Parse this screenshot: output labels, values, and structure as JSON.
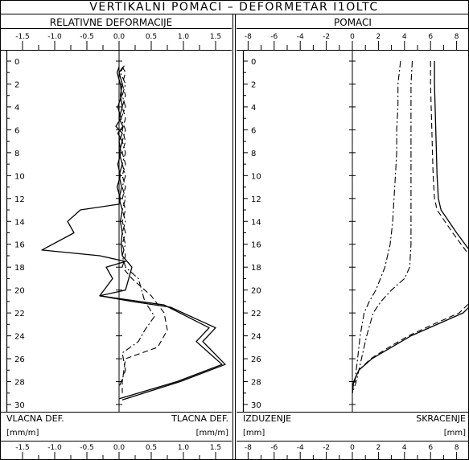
{
  "title": "VERTIKALNI  POMACI  –  DEFORMETAR  I1OLTC",
  "chart_data": [
    {
      "type": "line",
      "title": "RELATIVNE DEFORMACIJE",
      "xlim": [
        -1.5,
        1.75
      ],
      "ylim": [
        0,
        30
      ],
      "x_ticks": [
        -1.5,
        -1.0,
        -0.5,
        0.0,
        0.5,
        1.0,
        1.5
      ],
      "x_tick_labels": [
        "-1.5",
        "-1.0",
        "-0.5",
        "0.0",
        "0.5",
        "1.0",
        "1.5"
      ],
      "y_ticks": [
        0,
        2,
        4,
        6,
        8,
        10,
        12,
        14,
        16,
        18,
        20,
        22,
        24,
        26,
        28,
        30
      ],
      "y_tick_labels": [
        "0",
        "2",
        "4",
        "6",
        "8",
        "10",
        "12",
        "14",
        "16",
        "18",
        "20",
        "22",
        "24",
        "26",
        "28",
        "30"
      ],
      "left_label": "VLACNA DEF.",
      "right_label": "TLACNA DEF.",
      "left_unit": "[mm/m]",
      "right_unit": "[mm/m]",
      "series": [
        {
          "style": "solid",
          "points": [
            [
              0,
              0.5
            ],
            [
              -0.03,
              1
            ],
            [
              0.02,
              2
            ],
            [
              0.04,
              3
            ],
            [
              -0.02,
              4
            ],
            [
              0.03,
              5
            ],
            [
              -0.05,
              5.7
            ],
            [
              0.05,
              6.3
            ],
            [
              0,
              7
            ],
            [
              0.03,
              8
            ],
            [
              -0.02,
              9
            ],
            [
              0.02,
              10
            ],
            [
              -0.03,
              11
            ],
            [
              0.02,
              12
            ],
            [
              0,
              12.5
            ],
            [
              -0.6,
              13
            ],
            [
              -0.8,
              14
            ],
            [
              -0.7,
              15
            ],
            [
              -1.2,
              16.5
            ],
            [
              -0.3,
              17
            ],
            [
              0.1,
              17.5
            ],
            [
              -0.2,
              18
            ],
            [
              -0.1,
              19
            ],
            [
              -0.3,
              20.5
            ],
            [
              0.2,
              20.9
            ],
            [
              0.7,
              21.3
            ],
            [
              1.4,
              23.3
            ],
            [
              1.2,
              24.5
            ],
            [
              1.6,
              26.5
            ],
            [
              0.9,
              28
            ],
            [
              0,
              29.5
            ]
          ]
        },
        {
          "style": "solid",
          "points": [
            [
              0.05,
              0.6
            ],
            [
              0,
              1
            ],
            [
              0.05,
              2
            ],
            [
              0.02,
              3
            ],
            [
              0.05,
              4
            ],
            [
              0,
              5
            ],
            [
              0.06,
              5.7
            ],
            [
              -0.02,
              6.3
            ],
            [
              0.05,
              7
            ],
            [
              0,
              8
            ],
            [
              0.05,
              9
            ],
            [
              0,
              10
            ],
            [
              0.04,
              11
            ],
            [
              0,
              12
            ],
            [
              0.05,
              13
            ],
            [
              0.02,
              14
            ],
            [
              0.05,
              15
            ],
            [
              0.03,
              16
            ],
            [
              0.05,
              17
            ],
            [
              0.2,
              18
            ],
            [
              0.15,
              19
            ],
            [
              0.1,
              20
            ],
            [
              -0.3,
              20.5
            ],
            [
              0.2,
              21
            ],
            [
              0.8,
              21.5
            ],
            [
              1.5,
              23.3
            ],
            [
              1.3,
              24.5
            ],
            [
              1.65,
              26.5
            ],
            [
              0.95,
              28
            ],
            [
              0.05,
              29.6
            ]
          ]
        },
        {
          "style": "dashed",
          "points": [
            [
              0.05,
              0.5
            ],
            [
              0.1,
              1
            ],
            [
              0.05,
              2
            ],
            [
              0.1,
              3
            ],
            [
              0.05,
              4
            ],
            [
              0.1,
              5
            ],
            [
              0.05,
              6
            ],
            [
              0.1,
              7
            ],
            [
              0.05,
              8
            ],
            [
              0.1,
              9
            ],
            [
              0.05,
              10
            ],
            [
              0.1,
              11
            ],
            [
              0.05,
              12
            ],
            [
              0.1,
              13
            ],
            [
              0.05,
              14
            ],
            [
              0.1,
              15
            ],
            [
              0.05,
              16
            ],
            [
              0.1,
              17
            ],
            [
              0.05,
              18
            ],
            [
              0.2,
              19
            ],
            [
              0.5,
              20.5
            ],
            [
              0.7,
              22
            ],
            [
              0.75,
              23.5
            ],
            [
              0.6,
              25
            ],
            [
              0.1,
              26
            ],
            [
              0.05,
              28
            ],
            [
              0.05,
              29
            ]
          ]
        },
        {
          "style": "dashdot",
          "points": [
            [
              0.08,
              0.4
            ],
            [
              0.02,
              1
            ],
            [
              0.1,
              2
            ],
            [
              0.05,
              3
            ],
            [
              0.1,
              4
            ],
            [
              0.03,
              5
            ],
            [
              0.1,
              6
            ],
            [
              0.05,
              7
            ],
            [
              0.1,
              8
            ],
            [
              0.05,
              9
            ],
            [
              0.1,
              10
            ],
            [
              0.05,
              11
            ],
            [
              0.1,
              12
            ],
            [
              0.05,
              13
            ],
            [
              0.1,
              14
            ],
            [
              0.05,
              15
            ],
            [
              0.1,
              16
            ],
            [
              0.05,
              17
            ],
            [
              0.1,
              18
            ],
            [
              0.3,
              19
            ],
            [
              0.4,
              21
            ],
            [
              0.55,
              22.3
            ],
            [
              0.4,
              23.5
            ],
            [
              0.3,
              24.5
            ],
            [
              0.05,
              25.5
            ],
            [
              0.1,
              27
            ],
            [
              0,
              28.5
            ]
          ]
        }
      ]
    },
    {
      "type": "line",
      "title": "POMACI",
      "xlim": [
        -10,
        10
      ],
      "ylim": [
        0,
        30
      ],
      "x_ticks": [
        -8,
        -6,
        -4,
        -2,
        0,
        2,
        4,
        6,
        8
      ],
      "x_tick_labels": [
        "-8",
        "-6",
        "-4",
        "-2",
        "0",
        "2",
        "4",
        "6",
        "8"
      ],
      "y_ticks": [
        0,
        2,
        4,
        6,
        8,
        10,
        12,
        14,
        16,
        18,
        20,
        22,
        24,
        26,
        28,
        30
      ],
      "y_tick_labels": [
        "0",
        "2",
        "4",
        "6",
        "8",
        "10",
        "12",
        "14",
        "16",
        "18",
        "20",
        "22",
        "24",
        "26",
        "28",
        "30"
      ],
      "left_label": "IZDUZENJE",
      "right_label": "SKRACENJE",
      "left_unit": "[mm]",
      "right_unit": "[mm]",
      "series": [
        {
          "style": "solid",
          "points": [
            [
              6.3,
              0
            ],
            [
              6.3,
              2
            ],
            [
              6.35,
              4
            ],
            [
              6.4,
              6
            ],
            [
              6.45,
              8
            ],
            [
              6.5,
              10
            ],
            [
              6.6,
              12
            ],
            [
              6.8,
              13
            ],
            [
              8,
              15
            ],
            [
              9.3,
              17
            ],
            [
              9.6,
              18
            ],
            [
              9.7,
              20
            ],
            [
              9.4,
              21
            ],
            [
              8.5,
              22
            ],
            [
              6.5,
              23
            ],
            [
              4.5,
              24
            ],
            [
              3,
              25
            ],
            [
              1.5,
              26
            ],
            [
              0.5,
              27
            ],
            [
              0.1,
              28
            ],
            [
              0,
              29
            ]
          ]
        },
        {
          "style": "dashed",
          "points": [
            [
              6.0,
              0
            ],
            [
              6.0,
              2
            ],
            [
              6.05,
              4
            ],
            [
              6.1,
              6
            ],
            [
              6.15,
              8
            ],
            [
              6.2,
              10
            ],
            [
              6.3,
              12
            ],
            [
              6.5,
              13
            ],
            [
              7.7,
              15
            ],
            [
              9.0,
              17
            ],
            [
              9.3,
              18
            ],
            [
              9.4,
              20
            ],
            [
              9.1,
              21
            ],
            [
              8.2,
              22
            ],
            [
              6.2,
              23
            ],
            [
              4.3,
              24
            ],
            [
              2.8,
              25
            ],
            [
              1.4,
              26
            ],
            [
              0.5,
              27
            ],
            [
              0.1,
              28
            ],
            [
              0,
              29
            ]
          ]
        },
        {
          "style": "dashdot",
          "points": [
            [
              4.6,
              0
            ],
            [
              4.5,
              2
            ],
            [
              4.5,
              4
            ],
            [
              4.5,
              6
            ],
            [
              4.5,
              8
            ],
            [
              4.5,
              10
            ],
            [
              4.5,
              12
            ],
            [
              4.5,
              14
            ],
            [
              4.5,
              16
            ],
            [
              4.4,
              18
            ],
            [
              4.0,
              19
            ],
            [
              3.0,
              20
            ],
            [
              2.2,
              21
            ],
            [
              1.6,
              22
            ],
            [
              1.1,
              24
            ],
            [
              0.7,
              26
            ],
            [
              0.3,
              28
            ],
            [
              0,
              29
            ]
          ]
        },
        {
          "style": "dashdot",
          "points": [
            [
              3.7,
              0
            ],
            [
              3.5,
              2
            ],
            [
              3.5,
              4
            ],
            [
              3.4,
              6
            ],
            [
              3.4,
              8
            ],
            [
              3.3,
              10
            ],
            [
              3.2,
              12
            ],
            [
              3.1,
              14
            ],
            [
              2.9,
              16
            ],
            [
              2.5,
              18
            ],
            [
              1.8,
              20
            ],
            [
              1.3,
              21
            ],
            [
              0.9,
              22
            ],
            [
              0.6,
              24
            ],
            [
              0.4,
              26
            ],
            [
              0.2,
              28
            ],
            [
              0,
              28.5
            ]
          ]
        }
      ]
    }
  ]
}
